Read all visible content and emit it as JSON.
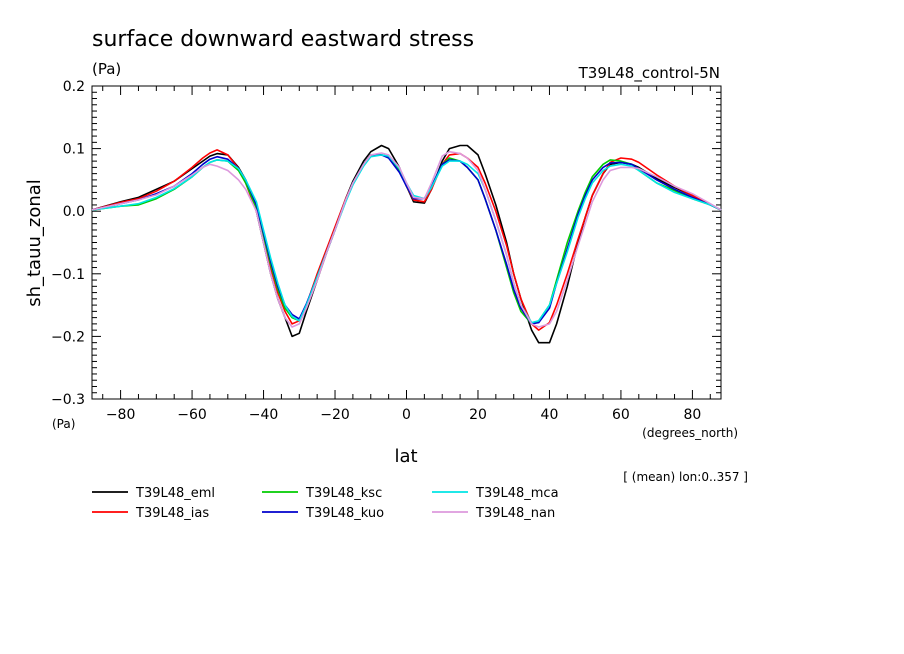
{
  "header": {
    "title": "surface downward eastward stress",
    "units": "(Pa)",
    "experiment": "T39L48_control-5N"
  },
  "axis_notes": {
    "y_units_bottom": "(Pa)",
    "x_units": "(degrees_north)",
    "averaging": "[ (mean) lon:0..357 ]"
  },
  "chart_data": {
    "type": "line",
    "title": "surface downward eastward stress",
    "xlabel": "lat",
    "ylabel": "sh_tauu_zonal",
    "xlim": [
      -88,
      88
    ],
    "ylim": [
      -0.3,
      0.2
    ],
    "xticks": [
      -80,
      -60,
      -40,
      -20,
      0,
      20,
      40,
      60,
      80
    ],
    "xtick_labels": [
      "−80",
      "−60",
      "−40",
      "−20",
      "0",
      "20",
      "40",
      "60",
      "80"
    ],
    "yticks": [
      -0.3,
      -0.2,
      -0.1,
      0.0,
      0.1,
      0.2
    ],
    "ytick_labels": [
      "−0.3",
      "−0.2",
      "−0.1",
      "0.0",
      "0.1",
      "0.2"
    ],
    "grid": false,
    "legend_position": "bottom",
    "series": [
      {
        "name": "T39L48_eml",
        "color": "#000000",
        "x": [
          -88,
          -80,
          -75,
          -70,
          -65,
          -60,
          -57,
          -55,
          -53,
          -50,
          -47,
          -45,
          -42,
          -40,
          -38,
          -36,
          -34,
          -32,
          -30,
          -28,
          -25,
          -22,
          -20,
          -17,
          -15,
          -12,
          -10,
          -7,
          -5,
          -2,
          0,
          2,
          5,
          7,
          10,
          12,
          15,
          17,
          20,
          22,
          25,
          28,
          30,
          32,
          35,
          37,
          40,
          42,
          45,
          48,
          50,
          52,
          55,
          57,
          60,
          63,
          65,
          70,
          75,
          80,
          85,
          88
        ],
        "y": [
          0.002,
          0.015,
          0.022,
          0.035,
          0.048,
          0.068,
          0.08,
          0.088,
          0.092,
          0.09,
          0.07,
          0.05,
          0.0,
          -0.05,
          -0.1,
          -0.14,
          -0.17,
          -0.2,
          -0.195,
          -0.16,
          -0.11,
          -0.06,
          -0.03,
          0.02,
          0.048,
          0.08,
          0.095,
          0.105,
          0.1,
          0.07,
          0.04,
          0.015,
          0.013,
          0.035,
          0.08,
          0.1,
          0.105,
          0.105,
          0.09,
          0.06,
          0.01,
          -0.05,
          -0.1,
          -0.14,
          -0.19,
          -0.21,
          -0.21,
          -0.18,
          -0.12,
          -0.05,
          -0.01,
          0.025,
          0.06,
          0.075,
          0.078,
          0.075,
          0.07,
          0.052,
          0.038,
          0.025,
          0.01,
          0.002
        ]
      },
      {
        "name": "T39L48_ias",
        "color": "#ff0000",
        "x": [
          -88,
          -80,
          -75,
          -70,
          -65,
          -60,
          -57,
          -55,
          -53,
          -50,
          -47,
          -45,
          -42,
          -40,
          -38,
          -36,
          -34,
          -32,
          -30,
          -28,
          -25,
          -22,
          -20,
          -17,
          -15,
          -12,
          -10,
          -7,
          -5,
          -2,
          0,
          2,
          5,
          7,
          10,
          12,
          15,
          17,
          20,
          22,
          25,
          28,
          30,
          32,
          35,
          37,
          40,
          42,
          45,
          48,
          50,
          52,
          55,
          57,
          60,
          63,
          65,
          70,
          75,
          80,
          85,
          88
        ],
        "y": [
          0.002,
          0.014,
          0.02,
          0.032,
          0.048,
          0.07,
          0.085,
          0.093,
          0.098,
          0.09,
          0.068,
          0.045,
          0.0,
          -0.045,
          -0.09,
          -0.13,
          -0.16,
          -0.18,
          -0.175,
          -0.15,
          -0.1,
          -0.055,
          -0.025,
          0.02,
          0.045,
          0.075,
          0.09,
          0.09,
          0.087,
          0.065,
          0.04,
          0.018,
          0.015,
          0.035,
          0.075,
          0.09,
          0.092,
          0.085,
          0.07,
          0.045,
          0.0,
          -0.055,
          -0.1,
          -0.14,
          -0.18,
          -0.19,
          -0.178,
          -0.15,
          -0.1,
          -0.045,
          -0.01,
          0.025,
          0.06,
          0.078,
          0.085,
          0.083,
          0.078,
          0.058,
          0.04,
          0.025,
          0.01,
          0.002
        ]
      },
      {
        "name": "T39L48_ksc",
        "color": "#00cc00",
        "x": [
          -88,
          -80,
          -75,
          -70,
          -65,
          -60,
          -57,
          -55,
          -53,
          -50,
          -47,
          -45,
          -42,
          -40,
          -38,
          -36,
          -34,
          -32,
          -30,
          -28,
          -25,
          -22,
          -20,
          -17,
          -15,
          -12,
          -10,
          -7,
          -5,
          -2,
          0,
          2,
          5,
          7,
          10,
          12,
          15,
          17,
          20,
          22,
          25,
          28,
          30,
          32,
          35,
          37,
          40,
          42,
          45,
          48,
          50,
          52,
          55,
          57,
          60,
          63,
          65,
          70,
          75,
          80,
          85,
          88
        ],
        "y": [
          0.002,
          0.008,
          0.01,
          0.02,
          0.035,
          0.055,
          0.07,
          0.078,
          0.082,
          0.08,
          0.065,
          0.045,
          0.005,
          -0.04,
          -0.085,
          -0.125,
          -0.155,
          -0.17,
          -0.175,
          -0.15,
          -0.105,
          -0.06,
          -0.03,
          0.018,
          0.045,
          0.075,
          0.09,
          0.09,
          0.087,
          0.065,
          0.04,
          0.02,
          0.02,
          0.04,
          0.075,
          0.085,
          0.08,
          0.07,
          0.05,
          0.02,
          -0.03,
          -0.09,
          -0.13,
          -0.16,
          -0.18,
          -0.175,
          -0.15,
          -0.11,
          -0.05,
          0.0,
          0.03,
          0.055,
          0.075,
          0.082,
          0.08,
          0.075,
          0.065,
          0.045,
          0.033,
          0.02,
          0.01,
          0.002
        ]
      },
      {
        "name": "T39L48_kuo",
        "color": "#0000cc",
        "x": [
          -88,
          -80,
          -75,
          -70,
          -65,
          -60,
          -57,
          -55,
          -53,
          -50,
          -47,
          -45,
          -42,
          -40,
          -38,
          -36,
          -34,
          -32,
          -30,
          -28,
          -25,
          -22,
          -20,
          -17,
          -15,
          -12,
          -10,
          -7,
          -5,
          -2,
          0,
          2,
          5,
          7,
          10,
          12,
          15,
          17,
          20,
          22,
          25,
          28,
          30,
          32,
          35,
          37,
          40,
          42,
          45,
          48,
          50,
          52,
          55,
          57,
          60,
          63,
          65,
          70,
          75,
          80,
          85,
          88
        ],
        "y": [
          0.002,
          0.012,
          0.018,
          0.028,
          0.04,
          0.06,
          0.075,
          0.083,
          0.087,
          0.083,
          0.068,
          0.05,
          0.01,
          -0.035,
          -0.08,
          -0.12,
          -0.15,
          -0.165,
          -0.172,
          -0.148,
          -0.105,
          -0.06,
          -0.03,
          0.018,
          0.045,
          0.075,
          0.09,
          0.09,
          0.085,
          0.062,
          0.04,
          0.02,
          0.02,
          0.04,
          0.075,
          0.082,
          0.08,
          0.07,
          0.05,
          0.02,
          -0.03,
          -0.085,
          -0.125,
          -0.155,
          -0.18,
          -0.178,
          -0.155,
          -0.115,
          -0.06,
          -0.005,
          0.025,
          0.05,
          0.07,
          0.077,
          0.078,
          0.075,
          0.068,
          0.05,
          0.035,
          0.022,
          0.01,
          0.002
        ]
      },
      {
        "name": "T39L48_mca",
        "color": "#00e5e5",
        "x": [
          -88,
          -80,
          -75,
          -70,
          -65,
          -60,
          -57,
          -55,
          -53,
          -50,
          -47,
          -45,
          -42,
          -40,
          -38,
          -36,
          -34,
          -32,
          -30,
          -28,
          -25,
          -22,
          -20,
          -17,
          -15,
          -12,
          -10,
          -7,
          -5,
          -2,
          0,
          2,
          5,
          7,
          10,
          12,
          15,
          17,
          20,
          22,
          25,
          28,
          30,
          32,
          35,
          37,
          40,
          42,
          45,
          48,
          50,
          52,
          55,
          57,
          60,
          63,
          65,
          70,
          75,
          80,
          85,
          88
        ],
        "y": [
          0.002,
          0.008,
          0.012,
          0.022,
          0.036,
          0.055,
          0.07,
          0.078,
          0.082,
          0.08,
          0.068,
          0.05,
          0.015,
          -0.03,
          -0.075,
          -0.115,
          -0.15,
          -0.168,
          -0.175,
          -0.15,
          -0.105,
          -0.06,
          -0.03,
          0.015,
          0.042,
          0.072,
          0.087,
          0.09,
          0.088,
          0.068,
          0.045,
          0.025,
          0.02,
          0.038,
          0.072,
          0.08,
          0.08,
          0.075,
          0.06,
          0.035,
          -0.015,
          -0.07,
          -0.115,
          -0.15,
          -0.178,
          -0.175,
          -0.15,
          -0.115,
          -0.065,
          -0.01,
          0.02,
          0.045,
          0.065,
          0.072,
          0.075,
          0.072,
          0.065,
          0.045,
          0.03,
          0.02,
          0.01,
          0.002
        ]
      },
      {
        "name": "T39L48_nan",
        "color": "#dd99dd",
        "x": [
          -88,
          -80,
          -75,
          -70,
          -65,
          -60,
          -57,
          -55,
          -53,
          -50,
          -47,
          -45,
          -42,
          -40,
          -38,
          -36,
          -34,
          -32,
          -30,
          -28,
          -25,
          -22,
          -20,
          -17,
          -15,
          -12,
          -10,
          -7,
          -5,
          -2,
          0,
          2,
          5,
          7,
          10,
          12,
          15,
          17,
          20,
          22,
          25,
          28,
          30,
          32,
          35,
          37,
          40,
          42,
          45,
          48,
          50,
          52,
          55,
          57,
          60,
          63,
          65,
          70,
          75,
          80,
          85,
          88
        ],
        "y": [
          0.002,
          0.012,
          0.018,
          0.026,
          0.04,
          0.058,
          0.07,
          0.075,
          0.072,
          0.065,
          0.05,
          0.035,
          0.0,
          -0.05,
          -0.1,
          -0.14,
          -0.17,
          -0.185,
          -0.18,
          -0.155,
          -0.11,
          -0.06,
          -0.03,
          0.018,
          0.045,
          0.075,
          0.09,
          0.093,
          0.09,
          0.07,
          0.045,
          0.022,
          0.02,
          0.045,
          0.088,
          0.095,
          0.092,
          0.085,
          0.065,
          0.035,
          -0.015,
          -0.07,
          -0.115,
          -0.15,
          -0.18,
          -0.185,
          -0.18,
          -0.16,
          -0.11,
          -0.055,
          -0.02,
          0.015,
          0.05,
          0.065,
          0.07,
          0.07,
          0.068,
          0.055,
          0.04,
          0.028,
          0.012,
          0.002
        ]
      }
    ]
  }
}
